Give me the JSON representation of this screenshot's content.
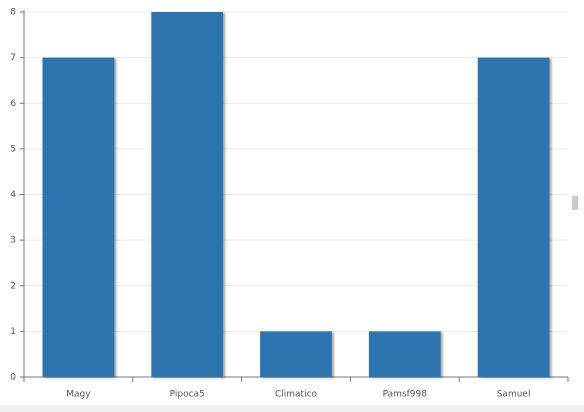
{
  "chart_data": {
    "type": "bar",
    "categories": [
      "Magy",
      "Pipoca5",
      "Climatico",
      "Pamsf998",
      "Samuel"
    ],
    "values": [
      7,
      8,
      1,
      1,
      7
    ],
    "color": "#2e75b0",
    "ylim": [
      0,
      8
    ],
    "yticks": [
      0,
      1,
      2,
      3,
      4,
      5,
      6,
      7,
      8
    ],
    "grid": true
  }
}
